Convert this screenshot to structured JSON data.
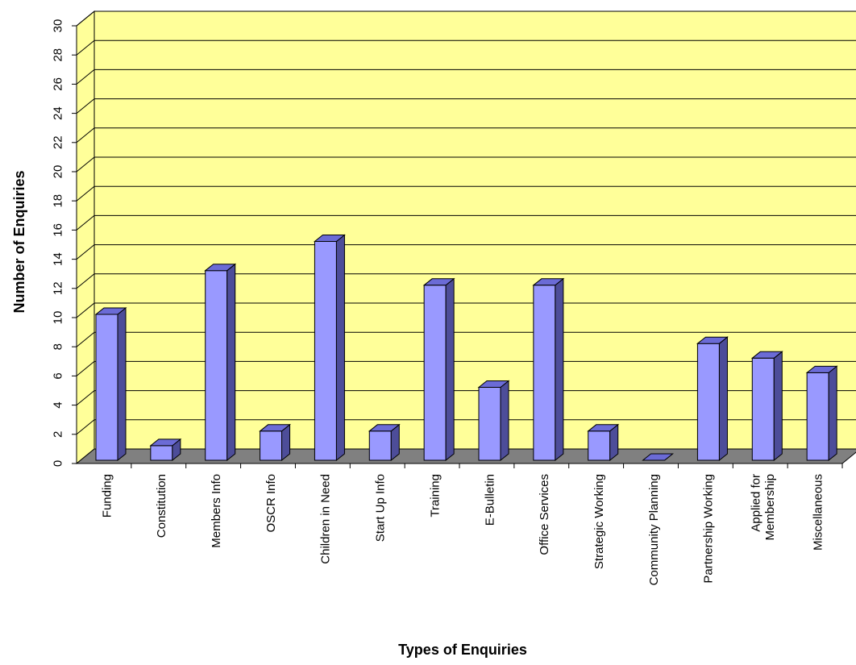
{
  "chart_data": {
    "type": "bar",
    "title": "",
    "xlabel": "Types of Enquiries",
    "ylabel": "Number of Enquiries",
    "ylim": [
      0,
      30
    ],
    "ytick_step": 2,
    "grid": true,
    "categories": [
      "Funding",
      "Constitution",
      "Members Info",
      "OSCR Info",
      "Children in Need",
      "Start Up Info",
      "Training",
      "E-Bulletin",
      "Office Services",
      "Strategic Working",
      "Community Planning",
      "Partnership Working",
      "Applied for Membership",
      "Miscellaneous"
    ],
    "values": [
      10,
      1,
      13,
      2,
      15,
      2,
      12,
      5,
      12,
      2,
      0,
      8,
      7,
      6
    ],
    "colors": {
      "wall": "#FFFF99",
      "floor": "#808080",
      "bar_front": "#9999FF",
      "bar_top": "#6B6BD6",
      "bar_side": "#4D4D99",
      "grid": "#000000"
    }
  }
}
